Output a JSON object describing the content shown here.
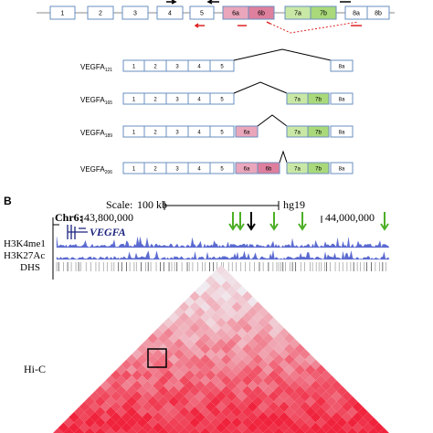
{
  "panel_a": {
    "gene_exons": [
      "1",
      "2",
      "3",
      "4",
      "5",
      "6a",
      "6b",
      "7a",
      "7b",
      "8a",
      "8b"
    ],
    "isoforms": [
      {
        "name": "VEGFA",
        "sub": "121",
        "exons": [
          "1",
          "2",
          "3",
          "4",
          "5",
          "8a"
        ]
      },
      {
        "name": "VEGFA",
        "sub": "165",
        "exons": [
          "1",
          "2",
          "3",
          "4",
          "5",
          "7a",
          "7b",
          "8a"
        ]
      },
      {
        "name": "VEGFA",
        "sub": "189",
        "exons": [
          "1",
          "2",
          "3",
          "4",
          "5",
          "6a",
          "7a",
          "7b",
          "8a"
        ]
      },
      {
        "name": "VEGFA",
        "sub": "206",
        "exons": [
          "1",
          "2",
          "3",
          "4",
          "5",
          "6a",
          "6b",
          "7a",
          "7b",
          "8a"
        ]
      }
    ]
  },
  "panel_b": {
    "label": "B",
    "scale_label": "Scale:",
    "scale_value": "100 kb",
    "assembly": "hg19",
    "chrom": "Chr6:",
    "coord_start": "43,800,000",
    "coord_end": "44,000,000",
    "gene": "VEGFA",
    "tracks": [
      "H3K4me1",
      "H3K27Ac",
      "DHS"
    ],
    "hic_label": "Hi-C"
  }
}
